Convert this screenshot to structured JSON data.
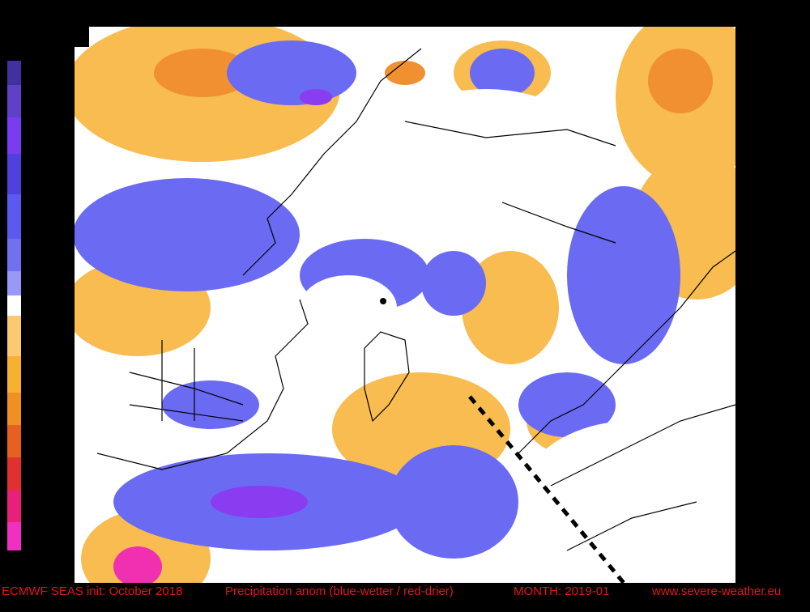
{
  "footer": {
    "model": "ECMWF SEAS init: October 2018",
    "title": "Precipitation anom (blue-wetter / red-drier)",
    "month": "MONTH: 2019-01",
    "source": "www.severe-weather.eu"
  }
}
